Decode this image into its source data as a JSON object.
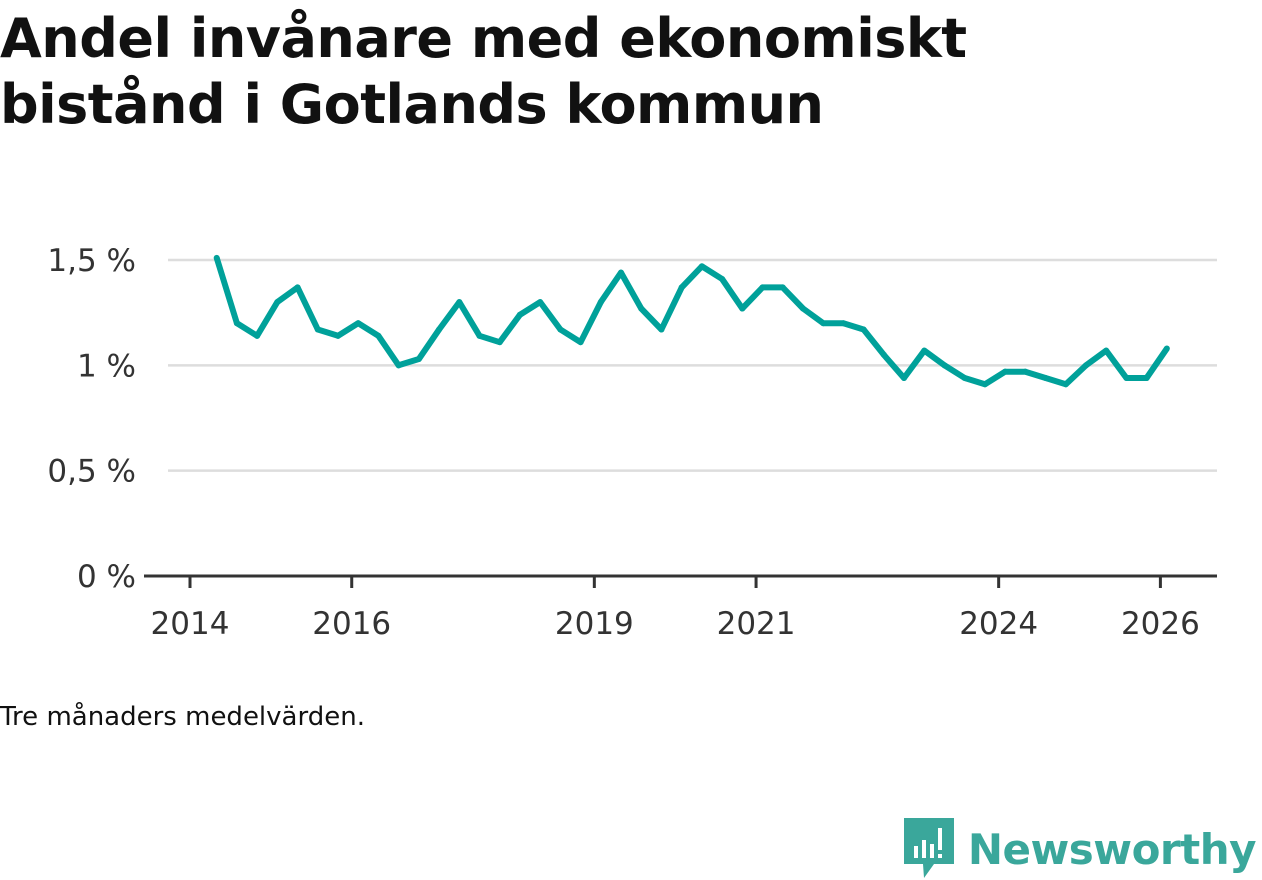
{
  "title": "Andel invånare med ekonomiskt bistånd i Gotlands kommun",
  "caption": "Tre månaders medelvärden.",
  "brand": {
    "name": "Newsworthy",
    "icon": "newsworthy-logo-icon",
    "color": "#3aa79b"
  },
  "colors": {
    "line": "#00a19a",
    "grid": "#dddddd",
    "axis": "#333333"
  },
  "chart_data": {
    "type": "line",
    "title": "Andel invånare med ekonomiskt bistånd i Gotlands kommun",
    "xlabel": "",
    "ylabel": "",
    "xlim": [
      2014.0,
      2026.7
    ],
    "ylim": [
      0,
      1.5
    ],
    "grid": true,
    "y_ticks": [
      {
        "value": 0,
        "label": "0 %"
      },
      {
        "value": 0.5,
        "label": "0,5 %"
      },
      {
        "value": 1,
        "label": "1 %"
      },
      {
        "value": 1.5,
        "label": "1,5 %"
      }
    ],
    "x_ticks": [
      {
        "value": 2014,
        "label": "2014"
      },
      {
        "value": 2016,
        "label": "2016"
      },
      {
        "value": 2019,
        "label": "2019"
      },
      {
        "value": 2021,
        "label": "2021"
      },
      {
        "value": 2024,
        "label": "2024"
      },
      {
        "value": 2026,
        "label": "2026"
      }
    ],
    "series": [
      {
        "name": "Andel invånare med ekonomiskt bistånd",
        "x": [
          2014.33,
          2014.58,
          2014.83,
          2015.08,
          2015.33,
          2015.58,
          2015.83,
          2016.08,
          2016.33,
          2016.58,
          2016.83,
          2017.08,
          2017.33,
          2017.58,
          2017.83,
          2018.08,
          2018.33,
          2018.58,
          2018.83,
          2019.08,
          2019.33,
          2019.58,
          2019.83,
          2020.08,
          2020.33,
          2020.58,
          2020.83,
          2021.08,
          2021.33,
          2021.58,
          2021.83,
          2022.08,
          2022.33,
          2022.58,
          2022.83,
          2023.08,
          2023.33,
          2023.58,
          2023.83,
          2024.08,
          2024.33,
          2024.58,
          2024.83,
          2025.08,
          2025.33,
          2025.58,
          2025.83,
          2026.08
        ],
        "values": [
          1.51,
          1.2,
          1.14,
          1.3,
          1.37,
          1.17,
          1.14,
          1.2,
          1.14,
          1.0,
          1.03,
          1.17,
          1.3,
          1.14,
          1.11,
          1.24,
          1.3,
          1.17,
          1.11,
          1.3,
          1.44,
          1.27,
          1.17,
          1.37,
          1.47,
          1.41,
          1.27,
          1.37,
          1.37,
          1.27,
          1.2,
          1.2,
          1.17,
          1.05,
          0.94,
          1.07,
          1.0,
          0.94,
          0.91,
          0.97,
          0.97,
          0.94,
          0.91,
          1.0,
          1.07,
          0.94,
          0.94,
          1.08
        ]
      }
    ]
  }
}
